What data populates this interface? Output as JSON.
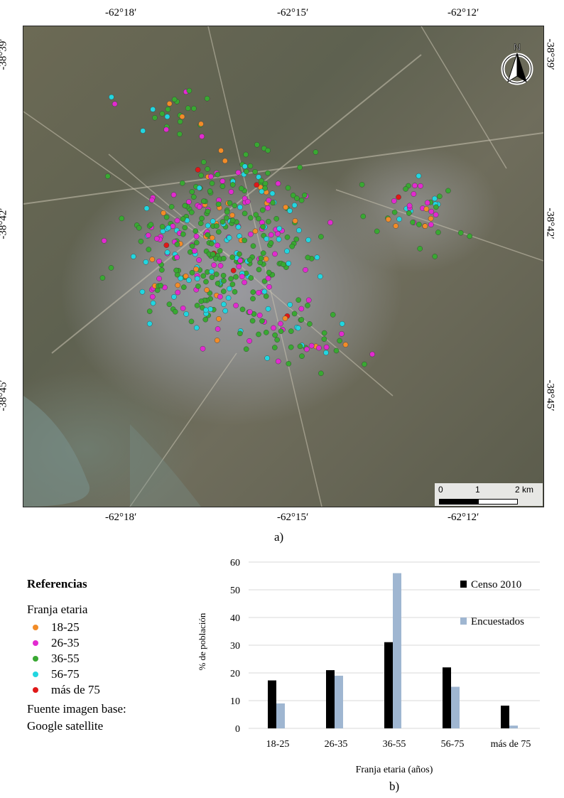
{
  "map": {
    "top_labels": [
      "-62°18′",
      "-62°15′",
      "-62°12′"
    ],
    "bottom_labels": [
      "-62°18′",
      "-62°15′",
      "-62°12′"
    ],
    "left_labels": [
      "-38°39′",
      "-38°42′",
      "-38°45′"
    ],
    "right_labels": [
      "-38°39′",
      "-38°42′",
      "-38°45′"
    ],
    "north_label": "N",
    "scale_labels": [
      "0",
      "1",
      "2 km"
    ],
    "panel_label": "a)"
  },
  "legend": {
    "title": "Referencias",
    "subtitle": "Franja etaria",
    "items": [
      {
        "label": "18-25",
        "color": "#f28c28"
      },
      {
        "label": "26-35",
        "color": "#e22ad0"
      },
      {
        "label": "36-55",
        "color": "#39a832"
      },
      {
        "label": "56-75",
        "color": "#22d6e0"
      },
      {
        "label": "más de 75",
        "color": "#e01818"
      }
    ],
    "source_line1": "Fuente imagen base:",
    "source_line2": "Google satellite"
  },
  "chart_data": {
    "type": "bar",
    "categories": [
      "18-25",
      "26-35",
      "36-55",
      "56-75",
      "más de 75"
    ],
    "series": [
      {
        "name": "Censo 2010",
        "values": [
          17.3,
          21,
          31.1,
          22,
          8.2
        ],
        "color": "#000000"
      },
      {
        "name": "Encuestados",
        "values": [
          9,
          19,
          56,
          15,
          1
        ],
        "color": "#9fb6d1"
      }
    ],
    "xlabel": "Franja etaria (años)",
    "ylabel": "% de población",
    "ylim": [
      0,
      60
    ],
    "yticks": [
      0,
      10,
      20,
      30,
      40,
      50,
      60
    ],
    "grid": true,
    "legend_position": "right"
  },
  "chart_panel_label": "b)"
}
